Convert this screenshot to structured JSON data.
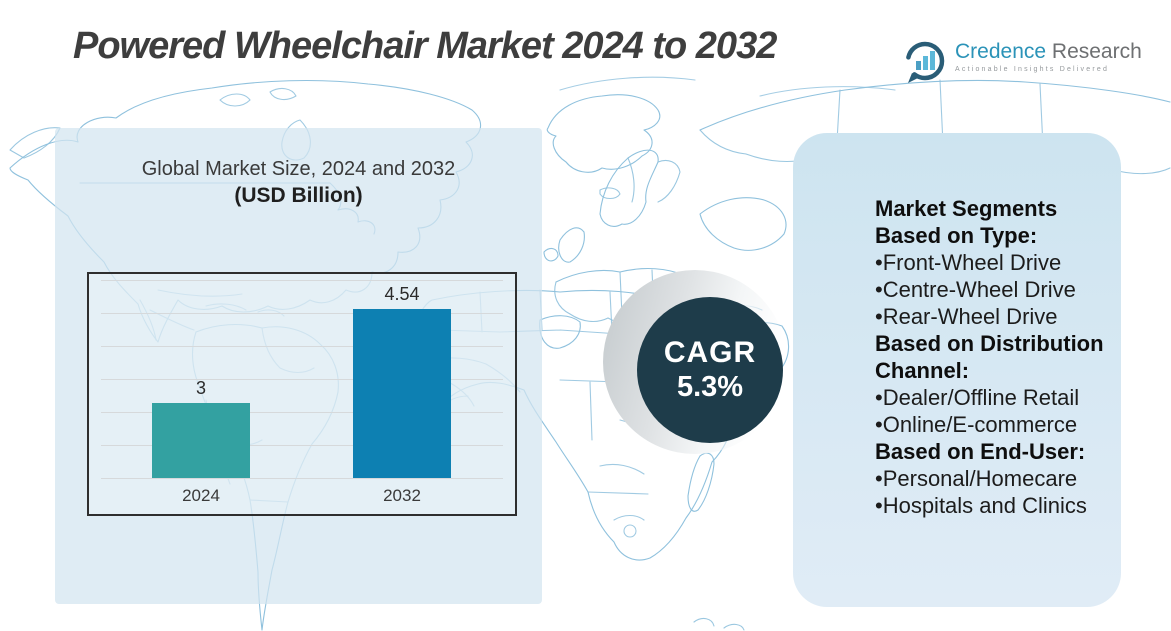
{
  "title": "Powered Wheelchair Market 2024 to 2032",
  "logo": {
    "brand_primary": "Credence",
    "brand_secondary": "Research",
    "tagline": "Actionable Insights Delivered",
    "icon": "bar-chart-bubble-icon"
  },
  "chart_data": {
    "type": "bar",
    "title": "Global Market Size, 2024 and 2032",
    "subtitle": "(USD Billion)",
    "unit": "USD Billion",
    "categories": [
      "2024",
      "2032"
    ],
    "values": [
      3,
      4.54
    ],
    "bar_colors": [
      "#33a1a1",
      "#0d80b2"
    ],
    "ylim": [
      1.77,
      5.02
    ],
    "gridlines": 7,
    "grid": "horizontal",
    "legend": "none"
  },
  "cagr_badge": {
    "label": "CAGR",
    "value": "5.3%",
    "circle_color": "#1e3c4a",
    "text_color": "#ffffff"
  },
  "segments_panel": {
    "background_top": "#cde4f0",
    "background_bottom": "#e0ecf6",
    "lines": [
      {
        "style": "header",
        "text": "Market Segments"
      },
      {
        "style": "header",
        "text": "Based on Type:"
      },
      {
        "style": "bullet",
        "text": "•Front-Wheel Drive"
      },
      {
        "style": "bullet",
        "text": "•Centre-Wheel Drive"
      },
      {
        "style": "bullet",
        "text": "•Rear-Wheel Drive"
      },
      {
        "style": "header",
        "text": "Based on Distribution Channel:"
      },
      {
        "style": "bullet",
        "text": "•Dealer/Offline Retail"
      },
      {
        "style": "bullet",
        "text": "•Online/E-commerce"
      },
      {
        "style": "header",
        "text": "Based on End-User:"
      },
      {
        "style": "bullet",
        "text": "•Personal/Homecare"
      },
      {
        "style": "bullet",
        "text": "•Hospitals and Clinics"
      }
    ]
  },
  "map": {
    "stroke_color": "#8fc1dd"
  }
}
